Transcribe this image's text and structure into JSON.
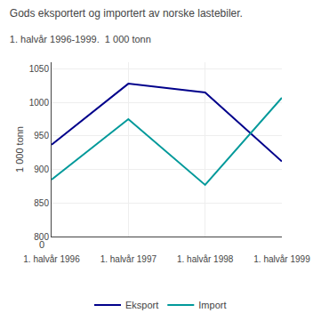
{
  "chart_data": {
    "type": "line",
    "title": "Gods eksportert og importert av norske lastebiler.",
    "subtitle": "1. halvår 1996-1999.  1 000 tonn",
    "ylabel": "1 000 tonn",
    "annotations": [
      "0"
    ],
    "categories": [
      "1. halvår 1996",
      "1. halvår 1997",
      "1. halvår 1998",
      "1. halvår 1999"
    ],
    "series": [
      {
        "name": "Eksport",
        "color": "#00008B",
        "values": [
          937,
          1028,
          1015,
          912
        ]
      },
      {
        "name": "Import",
        "color": "#00999A",
        "values": [
          885,
          975,
          877,
          1007
        ]
      }
    ],
    "ylim": [
      800,
      1060
    ],
    "yticks": [
      800,
      850,
      900,
      950,
      1000,
      1050
    ],
    "grid": true,
    "legend": "bottom"
  }
}
